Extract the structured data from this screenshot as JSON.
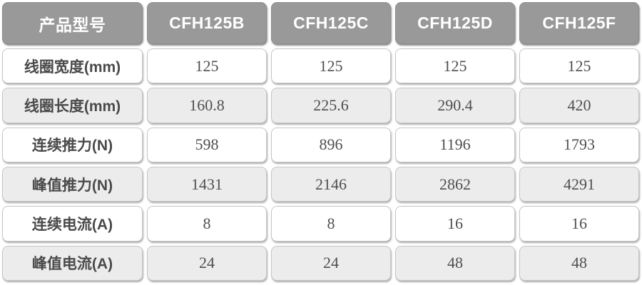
{
  "chart_data": {
    "type": "table",
    "columns": [
      "产品型号",
      "CFH125B",
      "CFH125C",
      "CFH125D",
      "CFH125F"
    ],
    "rows": [
      [
        "线圈宽度(mm)",
        125,
        125,
        125,
        125
      ],
      [
        "线圈长度(mm)",
        160.8,
        225.6,
        290.4,
        420
      ],
      [
        "连续推力(N)",
        598,
        896,
        1196,
        1793
      ],
      [
        "峰值推力(N)",
        1431,
        2146,
        2862,
        4291
      ],
      [
        "连续电流(A)",
        8,
        8,
        16,
        16
      ],
      [
        "峰值电流(A)",
        24,
        24,
        48,
        48
      ]
    ]
  },
  "table": {
    "header": {
      "label": "产品型号",
      "models": [
        "CFH125B",
        "CFH125C",
        "CFH125D",
        "CFH125F"
      ]
    },
    "rows": [
      {
        "label": "线圈宽度(mm)",
        "values": [
          "125",
          "125",
          "125",
          "125"
        ]
      },
      {
        "label": "线圈长度(mm)",
        "values": [
          "160.8",
          "225.6",
          "290.4",
          "420"
        ]
      },
      {
        "label": "连续推力(N)",
        "values": [
          "598",
          "896",
          "1196",
          "1793"
        ]
      },
      {
        "label": "峰值推力(N)",
        "values": [
          "1431",
          "2146",
          "2862",
          "4291"
        ]
      },
      {
        "label": "连续电流(A)",
        "values": [
          "8",
          "8",
          "16",
          "16"
        ]
      },
      {
        "label": "峰值电流(A)",
        "values": [
          "24",
          "24",
          "48",
          "48"
        ]
      }
    ]
  },
  "colors": {
    "header_bg": "#999999",
    "header_text": "#ffffff",
    "row_white_bg": "#ffffff",
    "row_gray_bg": "#ececec",
    "cell_border": "#c6c6c6",
    "label_text": "#4a4a4c",
    "value_text": "#4f4f51",
    "page_bg": "#ffffff"
  }
}
